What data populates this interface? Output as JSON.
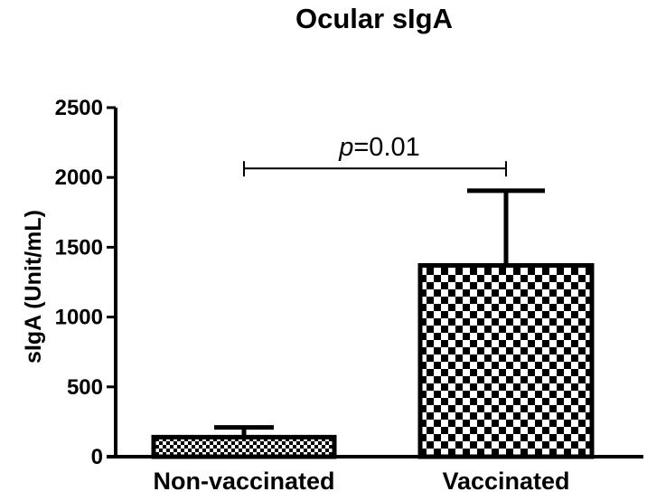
{
  "chart_data": {
    "type": "bar",
    "title": "Ocular sIgA",
    "xlabel": "",
    "ylabel": "sIgA (Unit/mL)",
    "categories": [
      "Non-vaccinated",
      "Vaccinated"
    ],
    "values": [
      140,
      1370
    ],
    "error_upper": [
      210,
      1905
    ],
    "ylim": [
      0,
      2500
    ],
    "yticks": [
      "0",
      "500",
      "1000",
      "1500",
      "2000",
      "2500"
    ],
    "bar_pattern": [
      "fine-checkerboard",
      "checkerboard"
    ],
    "grid": false,
    "annotation": {
      "p_symbol": "p",
      "p_text": "=0.01",
      "between": [
        "Non-vaccinated",
        "Vaccinated"
      ],
      "y_value": 2000
    }
  },
  "colors": {
    "bar_fill": "#ffffff",
    "bar_pattern": "#000000",
    "axis": "#000000"
  }
}
